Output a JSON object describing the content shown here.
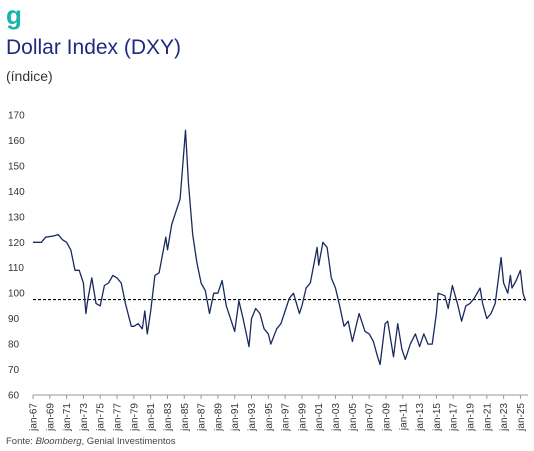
{
  "logo": "g",
  "chart_data": {
    "type": "line",
    "title": "Dollar Index (DXY)",
    "subtitle": "(índice)",
    "source": {
      "prefix": "Fonte:",
      "italic": "Bloomberg",
      "suffix": ", Genial Investimentos"
    },
    "reference_line": 97.5,
    "ylim": [
      60,
      170
    ],
    "yticks": [
      60,
      70,
      80,
      90,
      100,
      110,
      120,
      130,
      140,
      150,
      160,
      170
    ],
    "xlim": [
      1967,
      2025.9
    ],
    "xticks": [
      {
        "value": 1967,
        "label": "jan-67"
      },
      {
        "value": 1969,
        "label": "jan-69"
      },
      {
        "value": 1971,
        "label": "jan-71"
      },
      {
        "value": 1973,
        "label": "jan-73"
      },
      {
        "value": 1975,
        "label": "jan-75"
      },
      {
        "value": 1977,
        "label": "jan-77"
      },
      {
        "value": 1979,
        "label": "jan-79"
      },
      {
        "value": 1981,
        "label": "jan-81"
      },
      {
        "value": 1983,
        "label": "jan-83"
      },
      {
        "value": 1985,
        "label": "jan-85"
      },
      {
        "value": 1987,
        "label": "jan-87"
      },
      {
        "value": 1989,
        "label": "jan-89"
      },
      {
        "value": 1991,
        "label": "jan-91"
      },
      {
        "value": 1993,
        "label": "jan-93"
      },
      {
        "value": 1995,
        "label": "jan-95"
      },
      {
        "value": 1997,
        "label": "jan-97"
      },
      {
        "value": 1999,
        "label": "jan-99"
      },
      {
        "value": 2001,
        "label": "jan-01"
      },
      {
        "value": 2003,
        "label": "jan-03"
      },
      {
        "value": 2005,
        "label": "jan-05"
      },
      {
        "value": 2007,
        "label": "jan-07"
      },
      {
        "value": 2009,
        "label": "jan-09"
      },
      {
        "value": 2011,
        "label": "jan-11"
      },
      {
        "value": 2013,
        "label": "jan-13"
      },
      {
        "value": 2015,
        "label": "jan-15"
      },
      {
        "value": 2017,
        "label": "jan-17"
      },
      {
        "value": 2019,
        "label": "jan-19"
      },
      {
        "value": 2021,
        "label": "jan-21"
      },
      {
        "value": 2023,
        "label": "jan-23"
      },
      {
        "value": 2025,
        "label": "jan-25"
      }
    ],
    "series": [
      {
        "color": "#1b2a5e",
        "x": [
          1967,
          1968,
          1968.5,
          1969.5,
          1970,
          1970.5,
          1971,
          1971.5,
          1972,
          1972.5,
          1973,
          1973.3,
          1973.5,
          1974,
          1974.5,
          1975,
          1975.5,
          1976,
          1976.5,
          1977,
          1977.5,
          1978,
          1978.7,
          1979,
          1979.5,
          1980,
          1980.3,
          1980.6,
          1981,
          1981.5,
          1982,
          1982.8,
          1983,
          1983.5,
          1984,
          1984.5,
          1985.15,
          1985.5,
          1986,
          1986.5,
          1987,
          1987.5,
          1988,
          1988.5,
          1989,
          1989.5,
          1990,
          1990.5,
          1991,
          1991.5,
          1992,
          1992.7,
          1993,
          1993.5,
          1994,
          1994.5,
          1995,
          1995.3,
          1996,
          1996.5,
          1997,
          1997.5,
          1998,
          1998.7,
          1999,
          1999.5,
          2000,
          2000.8,
          2001,
          2001.5,
          2002,
          2002.5,
          2003,
          2003.5,
          2004,
          2004.5,
          2005,
          2005.8,
          2006,
          2006.5,
          2007,
          2007.5,
          2008,
          2008.3,
          2008.9,
          2009.2,
          2009.9,
          2010.4,
          2010.9,
          2011.3,
          2011.9,
          2012.5,
          2013,
          2013.5,
          2014,
          2014.5,
          2015,
          2015.2,
          2016,
          2016.4,
          2016.9,
          2017.5,
          2018,
          2018.5,
          2019,
          2019.5,
          2020.2,
          2020.5,
          2021,
          2021.5,
          2022,
          2022.7,
          2023,
          2023.5,
          2023.8,
          2024,
          2024.5,
          2025,
          2025.3,
          2025.6
        ],
        "values": [
          120,
          120,
          122,
          122.5,
          123,
          121,
          120,
          117,
          109,
          109,
          104,
          92,
          97,
          106,
          96,
          95,
          103,
          104,
          107,
          106,
          104,
          96,
          87,
          87,
          88,
          86,
          93,
          84,
          93,
          107,
          108,
          122,
          117,
          127,
          132,
          137,
          164,
          143,
          123,
          112,
          104,
          101,
          92,
          100,
          100,
          105,
          95,
          90,
          85,
          97,
          90,
          79,
          90,
          94,
          92,
          86,
          84,
          80,
          86,
          88,
          93,
          98,
          100,
          92,
          95,
          102,
          104,
          118,
          111,
          120,
          118,
          106,
          102,
          95,
          87,
          89,
          81,
          92,
          90,
          85,
          84,
          81,
          75,
          72,
          88,
          89,
          75,
          88,
          78,
          74,
          80,
          84,
          79,
          84,
          80,
          80,
          92,
          100,
          99,
          94,
          103,
          96,
          89,
          95,
          96,
          98,
          102,
          96,
          90,
          92,
          96,
          114,
          104,
          100,
          107,
          102,
          105,
          109,
          100,
          97
        ]
      }
    ]
  }
}
